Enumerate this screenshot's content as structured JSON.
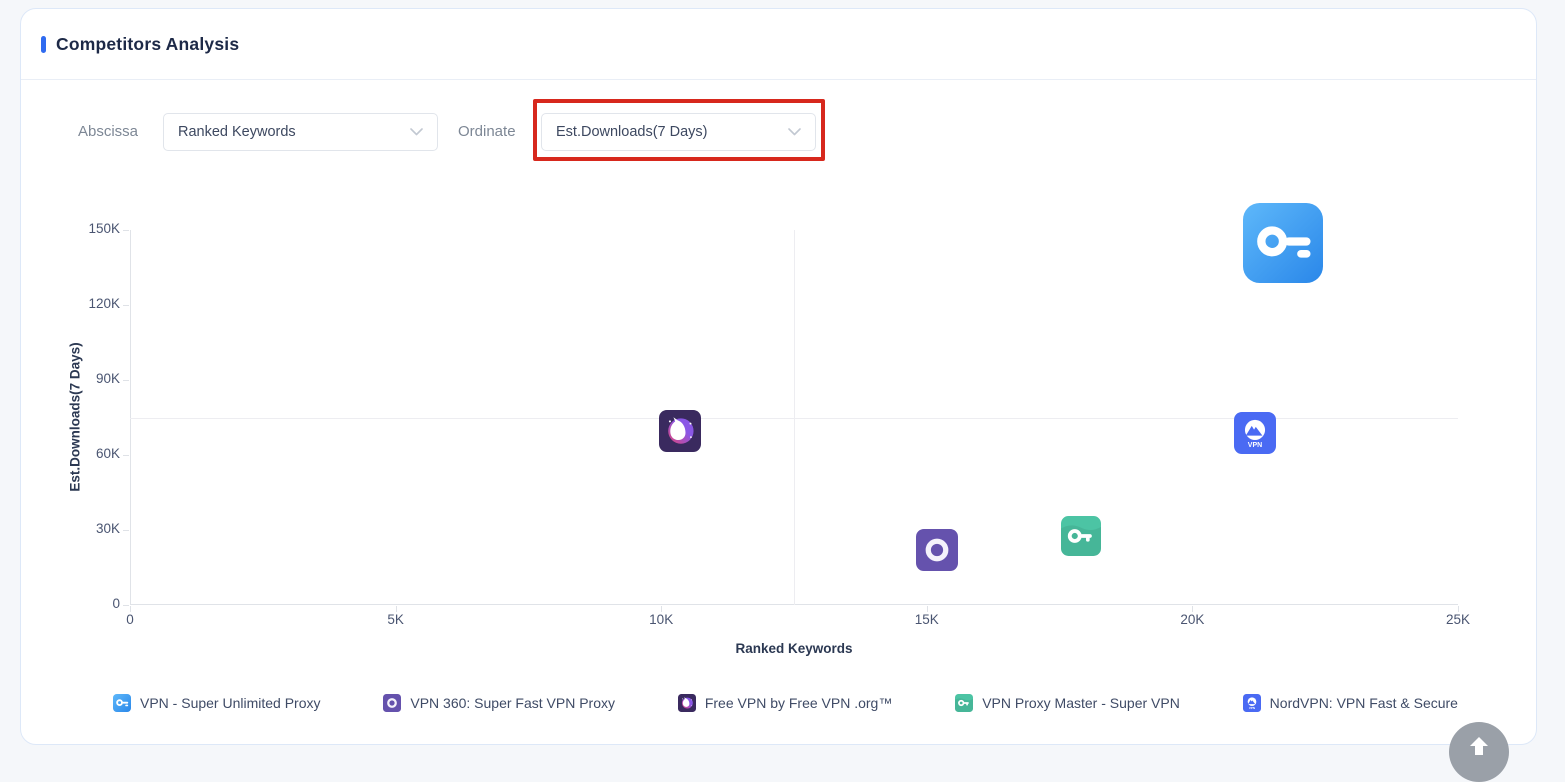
{
  "card": {
    "title": "Competitors Analysis",
    "accent_color": "#2f6bf0"
  },
  "controls": {
    "abscissa_label": "Abscissa",
    "abscissa_value": "Ranked Keywords",
    "ordinate_label": "Ordinate",
    "ordinate_value": "Est.Downloads(7 Days)",
    "annotation_highlight_color": "#d7281d"
  },
  "apps": {
    "super-unlimited": {
      "name": "VPN - Super Unlimited Proxy",
      "icon": "key-app-icon",
      "colors": [
        "#5eb8fa",
        "#2a87e9"
      ]
    },
    "vpn360": {
      "name": "VPN 360: Super Fast VPN Proxy",
      "icon": "ring-app-icon",
      "colors": [
        "#6552ad"
      ]
    },
    "freevpn-org": {
      "name": "Free VPN by Free VPN .org™",
      "icon": "unicorn-app-icon",
      "colors": [
        "#3a2a5f",
        "#e0457b",
        "#8a57e6"
      ]
    },
    "proxy-master": {
      "name": "VPN Proxy Master - Super VPN",
      "icon": "key-app-icon",
      "colors": [
        "#4cc4a4"
      ]
    },
    "nordvpn": {
      "name": "NordVPN: VPN Fast & Secure",
      "icon": "mountain-app-icon",
      "colors": [
        "#4a6af3"
      ]
    }
  },
  "chart_data": {
    "type": "scatter",
    "xlabel": "Ranked Keywords",
    "ylabel": "Est.Downloads(7 Days)",
    "xlim": [
      0,
      25000
    ],
    "ylim": [
      0,
      150000
    ],
    "x_ticks": [
      {
        "value": 0,
        "label": "0"
      },
      {
        "value": 5000,
        "label": "5K"
      },
      {
        "value": 10000,
        "label": "10K"
      },
      {
        "value": 15000,
        "label": "15K"
      },
      {
        "value": 20000,
        "label": "20K"
      },
      {
        "value": 25000,
        "label": "25K"
      }
    ],
    "y_ticks": [
      {
        "value": 0,
        "label": "0"
      },
      {
        "value": 30000,
        "label": "30K"
      },
      {
        "value": 60000,
        "label": "60K"
      },
      {
        "value": 90000,
        "label": "90K"
      },
      {
        "value": 120000,
        "label": "120K"
      },
      {
        "value": 150000,
        "label": "150K"
      }
    ],
    "quadrant_lines": {
      "x": 12500,
      "y": 75000
    },
    "grid": false,
    "legend_position": "bottom",
    "points": [
      {
        "app": "super-unlimited",
        "x": 21700,
        "y": 144800,
        "marker_size": 80
      },
      {
        "app": "freevpn-org",
        "x": 10350,
        "y": 69600,
        "marker_size": 42
      },
      {
        "app": "nordvpn",
        "x": 21170,
        "y": 68900,
        "marker_size": 42
      },
      {
        "app": "proxy-master",
        "x": 17900,
        "y": 27600,
        "marker_size": 40
      },
      {
        "app": "vpn360",
        "x": 15200,
        "y": 22000,
        "marker_size": 42
      }
    ]
  },
  "legend_order": [
    "super-unlimited",
    "vpn360",
    "freevpn-org",
    "proxy-master",
    "nordvpn"
  ],
  "back_to_top": {
    "icon": "arrow-up-icon"
  }
}
